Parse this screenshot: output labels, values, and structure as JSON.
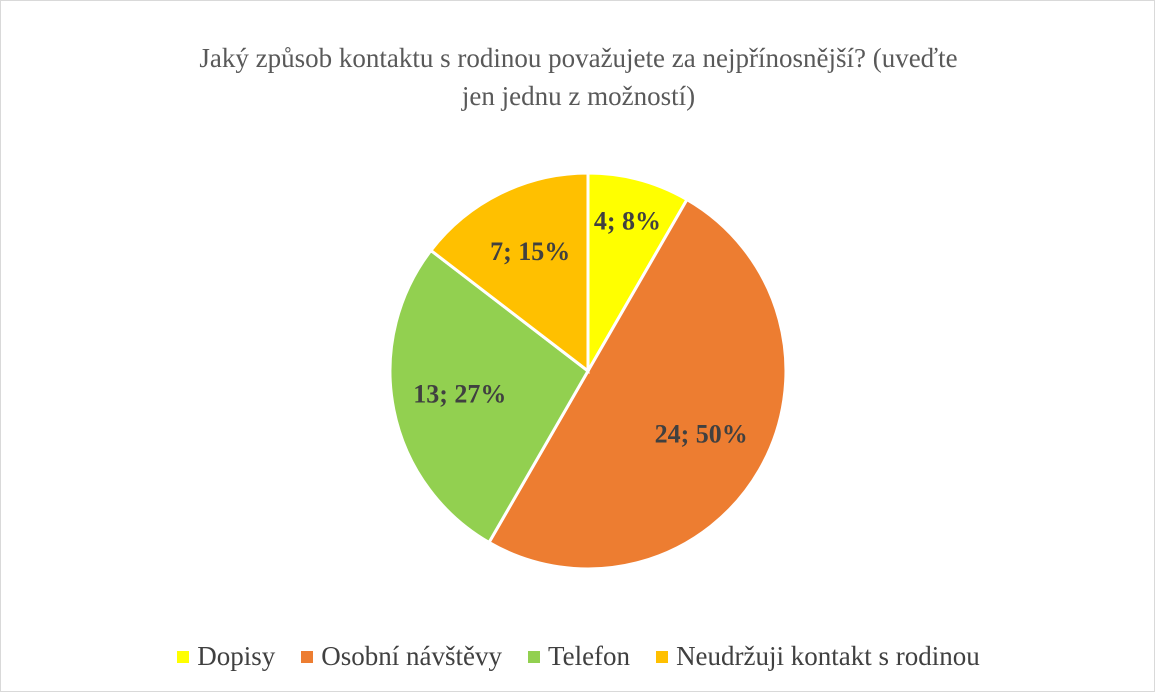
{
  "chart_data": {
    "type": "pie",
    "title": "Jaký způsob kontaktu s rodinou považujete za nejpřínosnější? (uveďte jen jednu z možností)",
    "categories": [
      "Dopisy",
      "Osobní návštěvy",
      "Telefon",
      "Neudržuji kontakt s rodinou"
    ],
    "values": [
      4,
      24,
      13,
      7
    ],
    "value_labels": [
      "4; 8%",
      "24; 50%",
      "13; 27%",
      "7; 15%"
    ],
    "colors": [
      "#ffff00",
      "#ed7d31",
      "#92d050",
      "#ffc000"
    ],
    "legend": "bottom"
  }
}
